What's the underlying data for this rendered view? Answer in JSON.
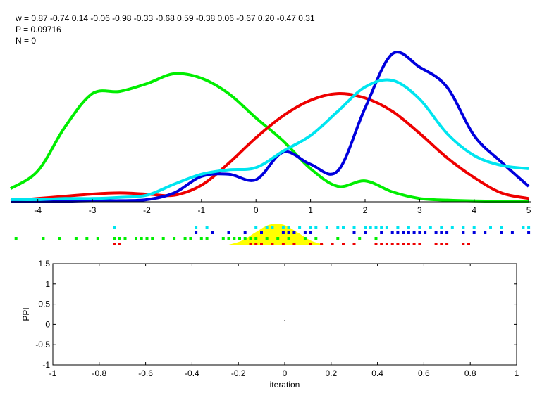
{
  "header": {
    "weights_line": "w = 0.87  -0.74  0.14  -0.06  -0.98  -0.33  -0.68  0.59  -0.38  0.06  -0.67  0.20  -0.47  0.31",
    "p_line": "P = 0.09716",
    "n_line": "N = 0"
  },
  "chart_data": [
    {
      "type": "line",
      "xlim": [
        -4.5,
        5.05
      ],
      "xticks": [
        -4,
        -3,
        -2,
        -1,
        0,
        1,
        2,
        3,
        4,
        5
      ],
      "grid": false,
      "series": [
        {
          "color": "#00ee00",
          "x": [
            -4.5,
            -4,
            -3.5,
            -3,
            -2.5,
            -2,
            -1.5,
            -1,
            -0.5,
            0,
            0.5,
            1,
            1.5,
            2,
            2.5,
            3,
            3.5,
            4,
            4.5,
            5
          ],
          "y": [
            0.12,
            0.28,
            0.68,
            0.98,
            1.0,
            1.07,
            1.16,
            1.12,
            0.98,
            0.76,
            0.55,
            0.3,
            0.14,
            0.19,
            0.09,
            0.03,
            0.015,
            0.008,
            0.004,
            0.002
          ]
        },
        {
          "color": "#ee0000",
          "x": [
            -4.5,
            -4,
            -3.5,
            -3,
            -2.5,
            -2,
            -1.5,
            -1,
            -0.5,
            0,
            0.5,
            1,
            1.5,
            2,
            2.5,
            3,
            3.5,
            4,
            4.5,
            5
          ],
          "y": [
            0.01,
            0.03,
            0.05,
            0.07,
            0.08,
            0.07,
            0.06,
            0.15,
            0.35,
            0.58,
            0.78,
            0.92,
            0.98,
            0.94,
            0.82,
            0.62,
            0.4,
            0.22,
            0.08,
            0.03
          ]
        },
        {
          "color": "#0000dd",
          "x": [
            -4.5,
            -4,
            -3.5,
            -3,
            -2.5,
            -2,
            -1.5,
            -1,
            -0.5,
            0,
            0.5,
            1,
            1.5,
            2,
            2.5,
            3,
            3.5,
            4,
            4.5,
            5
          ],
          "y": [
            0,
            0,
            0.005,
            0.01,
            0.01,
            0.02,
            0.08,
            0.23,
            0.25,
            0.2,
            0.45,
            0.34,
            0.28,
            0.85,
            1.34,
            1.22,
            1.04,
            0.6,
            0.36,
            0.14
          ]
        },
        {
          "color": "#00e5f0",
          "x": [
            -4.5,
            -4,
            -3.5,
            -3,
            -2.5,
            -2,
            -1.5,
            -1,
            -0.5,
            0,
            0.5,
            1,
            1.5,
            2,
            2.5,
            3,
            3.5,
            4,
            4.5,
            5
          ],
          "y": [
            0.02,
            0.02,
            0.03,
            0.03,
            0.04,
            0.06,
            0.16,
            0.25,
            0.29,
            0.31,
            0.46,
            0.6,
            0.82,
            1.04,
            1.1,
            0.93,
            0.62,
            0.42,
            0.33,
            0.3
          ]
        }
      ],
      "fill": {
        "color": "#ffff00",
        "x": [
          -0.5,
          -0.25,
          0,
          0.25,
          0.5,
          0.75,
          1.0,
          1.25
        ],
        "y": [
          0.0,
          0.2,
          0.6,
          0.95,
          0.95,
          0.6,
          0.2,
          0.0
        ]
      },
      "scatter_rows": [
        {
          "color": "#00e5f0",
          "x": [
            -2.6,
            -1.1,
            -0.9,
            0,
            0.2,
            0.3,
            0.5,
            0.6,
            0.8,
            1.0,
            1.1,
            1.3,
            1.5,
            1.6,
            1.8,
            2.0,
            2.1,
            2.2,
            2.3,
            2.4,
            2.6,
            2.8,
            3.0,
            3.2,
            3.4,
            3.6,
            3.8,
            4.0,
            4.3,
            4.5,
            4.9,
            5.0
          ]
        },
        {
          "color": "#0000dd",
          "x": [
            -1.1,
            -0.8,
            -0.5,
            -0.2,
            0.1,
            0.5,
            0.6,
            0.7,
            0.9,
            1.0,
            1.8,
            2.0,
            2.3,
            2.5,
            2.6,
            2.7,
            2.8,
            2.9,
            3.0,
            3.1,
            3.3,
            3.4,
            3.5,
            3.8,
            4.0,
            4.2,
            4.5,
            4.7,
            5.0
          ]
        },
        {
          "color": "#00ee00",
          "x": [
            -4.4,
            -3.9,
            -3.6,
            -3.3,
            -3.1,
            -2.9,
            -2.6,
            -2.5,
            -2.4,
            -2.2,
            -2.1,
            -2.0,
            -1.9,
            -1.7,
            -1.5,
            -1.3,
            -1.2,
            -1.0,
            -0.9,
            -0.6,
            -0.5,
            -0.4,
            -0.3,
            -0.2,
            -0.1,
            0.0,
            0.2,
            0.4,
            0.6,
            0.9,
            1.1,
            1.5,
            1.9,
            2.2
          ]
        },
        {
          "color": "#ee0000",
          "x": [
            -2.6,
            -2.5,
            -0.1,
            0.0,
            0.1,
            0.3,
            0.5,
            0.7,
            1.0,
            1.2,
            1.4,
            1.6,
            1.8,
            2.2,
            2.3,
            2.4,
            2.5,
            2.6,
            2.7,
            2.8,
            2.9,
            3.0,
            3.3,
            3.4,
            3.5,
            3.8,
            3.9
          ]
        }
      ]
    },
    {
      "type": "scatter",
      "xlabel": "iteration",
      "ylabel": "PPI",
      "xlim": [
        -1,
        1
      ],
      "ylim": [
        -1,
        1.5
      ],
      "xticks": [
        -1,
        -0.8,
        -0.6,
        -0.4,
        -0.2,
        0,
        0.2,
        0.4,
        0.6,
        0.8,
        1
      ],
      "yticks": [
        -1,
        -0.5,
        0,
        0.5,
        1,
        1.5
      ],
      "points": [
        {
          "x": 0,
          "y": 0.1
        }
      ],
      "grid": false
    }
  ]
}
